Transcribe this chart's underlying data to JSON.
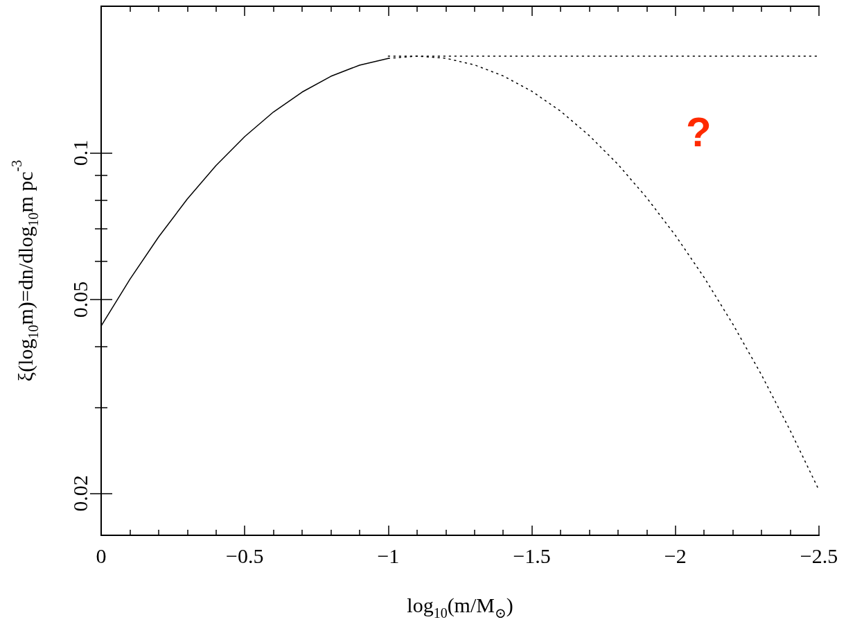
{
  "chart_data": {
    "type": "line",
    "xlabel": "log$_{10}$(m/M$_{⊙}$)",
    "ylabel": "ξ(log$_{10}$m)=dn/dlog$_{10}$m pc$^{-3}$",
    "log": "y",
    "xlim": [
      0,
      -2.5
    ],
    "ylim": [
      0.0164,
      0.2
    ],
    "xticks": [
      0,
      {
        "value": -0.1,
        "label": null
      },
      {
        "value": -0.2,
        "label": null
      },
      {
        "value": -0.3,
        "label": null
      },
      {
        "value": -0.4,
        "label": null
      },
      {
        "value": -0.5,
        "label": "−0.5"
      },
      {
        "value": -0.6,
        "label": null
      },
      {
        "value": -0.7,
        "label": null
      },
      {
        "value": -0.8,
        "label": null
      },
      {
        "value": -0.9,
        "label": null
      },
      {
        "value": -1,
        "label": "−1"
      },
      {
        "value": -1.1,
        "label": null
      },
      {
        "value": -1.2,
        "label": null
      },
      {
        "value": -1.3,
        "label": null
      },
      {
        "value": -1.4,
        "label": null
      },
      {
        "value": -1.5,
        "label": "−1.5"
      },
      {
        "value": -1.6,
        "label": null
      },
      {
        "value": -1.7,
        "label": null
      },
      {
        "value": -1.8,
        "label": null
      },
      {
        "value": -1.9,
        "label": null
      },
      {
        "value": -2,
        "label": "−2"
      },
      {
        "value": -2.1,
        "label": null
      },
      {
        "value": -2.2,
        "label": null
      },
      {
        "value": -2.3,
        "label": null
      },
      {
        "value": -2.4,
        "label": null
      },
      {
        "value": -2.5,
        "label": "−2.5"
      }
    ],
    "yticks": [
      0.02,
      {
        "value": 0.03,
        "label": null
      },
      {
        "value": 0.04,
        "label": null
      },
      0.05,
      {
        "value": 0.06,
        "label": null
      },
      {
        "value": 0.07,
        "label": null
      },
      {
        "value": 0.08,
        "label": null
      },
      {
        "value": 0.09,
        "label": null
      },
      0.1
    ],
    "annotations": [
      "?"
    ],
    "series": [
      {
        "color": "#000000",
        "line_style": "solid",
        "x": [
          0,
          -0.1,
          -0.2,
          -0.3,
          -0.4,
          -0.5,
          -0.6,
          -0.7,
          -0.8,
          -0.9,
          -1
        ],
        "values": [
          0.0441,
          0.055,
          0.0672,
          0.0804,
          0.0942,
          0.108,
          0.1213,
          0.1333,
          0.1436,
          0.1514,
          0.1563
        ]
      },
      {
        "color": "#000000",
        "line_style": "dotted",
        "x": [
          -1,
          -2.5
        ],
        "values": [
          0.158,
          0.158
        ]
      },
      {
        "color": "#000000",
        "line_style": "dotted",
        "x": [
          -1,
          -1.1,
          -1.2,
          -1.3,
          -1.4,
          -1.5,
          -1.6,
          -1.7,
          -1.8,
          -1.9,
          -2,
          -2.1,
          -2.2,
          -2.3,
          -2.4,
          -2.5
        ],
        "values": [
          0.1563,
          0.158,
          0.1564,
          0.1516,
          0.1439,
          0.1338,
          0.1218,
          0.1085,
          0.0947,
          0.0809,
          0.0677,
          0.0555,
          0.0445,
          0.035,
          0.0269,
          0.0203
        ]
      }
    ]
  }
}
